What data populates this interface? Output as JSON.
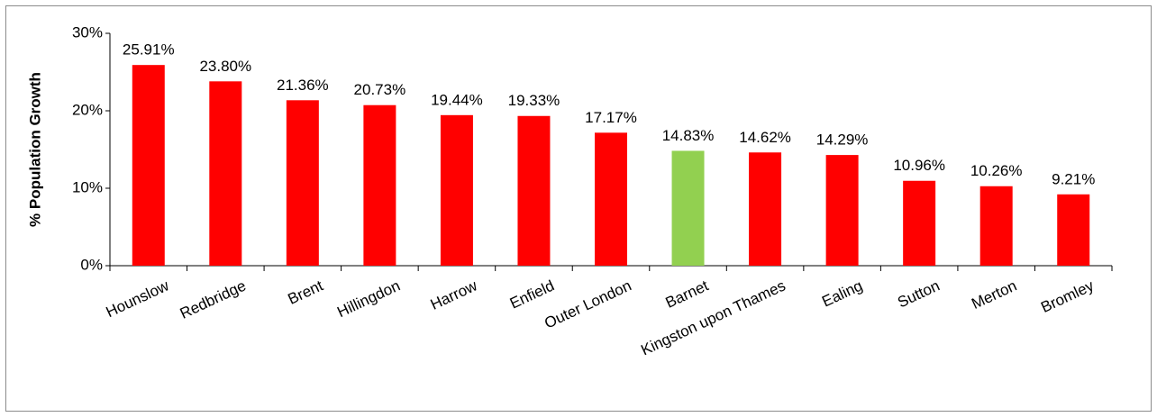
{
  "chart_data": {
    "type": "bar",
    "y_label": "% Population Growth",
    "categories": [
      "Hounslow",
      "Redbridge",
      "Brent",
      "Hillingdon",
      "Harrow",
      "Enfield",
      "Outer London",
      "Barnet",
      "Kingston upon Thames",
      "Ealing",
      "Sutton",
      "Merton",
      "Bromley"
    ],
    "values": [
      25.91,
      23.8,
      21.36,
      20.73,
      19.44,
      19.33,
      17.17,
      14.83,
      14.62,
      14.29,
      10.96,
      10.26,
      9.21
    ],
    "value_labels": [
      "25.91%",
      "23.80%",
      "21.36%",
      "20.73%",
      "19.44%",
      "19.33%",
      "17.17%",
      "14.83%",
      "14.62%",
      "14.29%",
      "10.96%",
      "10.26%",
      "9.21%"
    ],
    "colors": [
      "#ff0000",
      "#ff0000",
      "#ff0000",
      "#ff0000",
      "#ff0000",
      "#ff0000",
      "#ff0000",
      "#92d050",
      "#ff0000",
      "#ff0000",
      "#ff0000",
      "#ff0000",
      "#ff0000"
    ],
    "ylim": [
      0,
      30
    ],
    "yticks": [
      {
        "value": 0,
        "label": "0%"
      },
      {
        "value": 10,
        "label": "10%"
      },
      {
        "value": 20,
        "label": "20%"
      },
      {
        "value": 30,
        "label": "30%"
      }
    ],
    "grid": false
  }
}
